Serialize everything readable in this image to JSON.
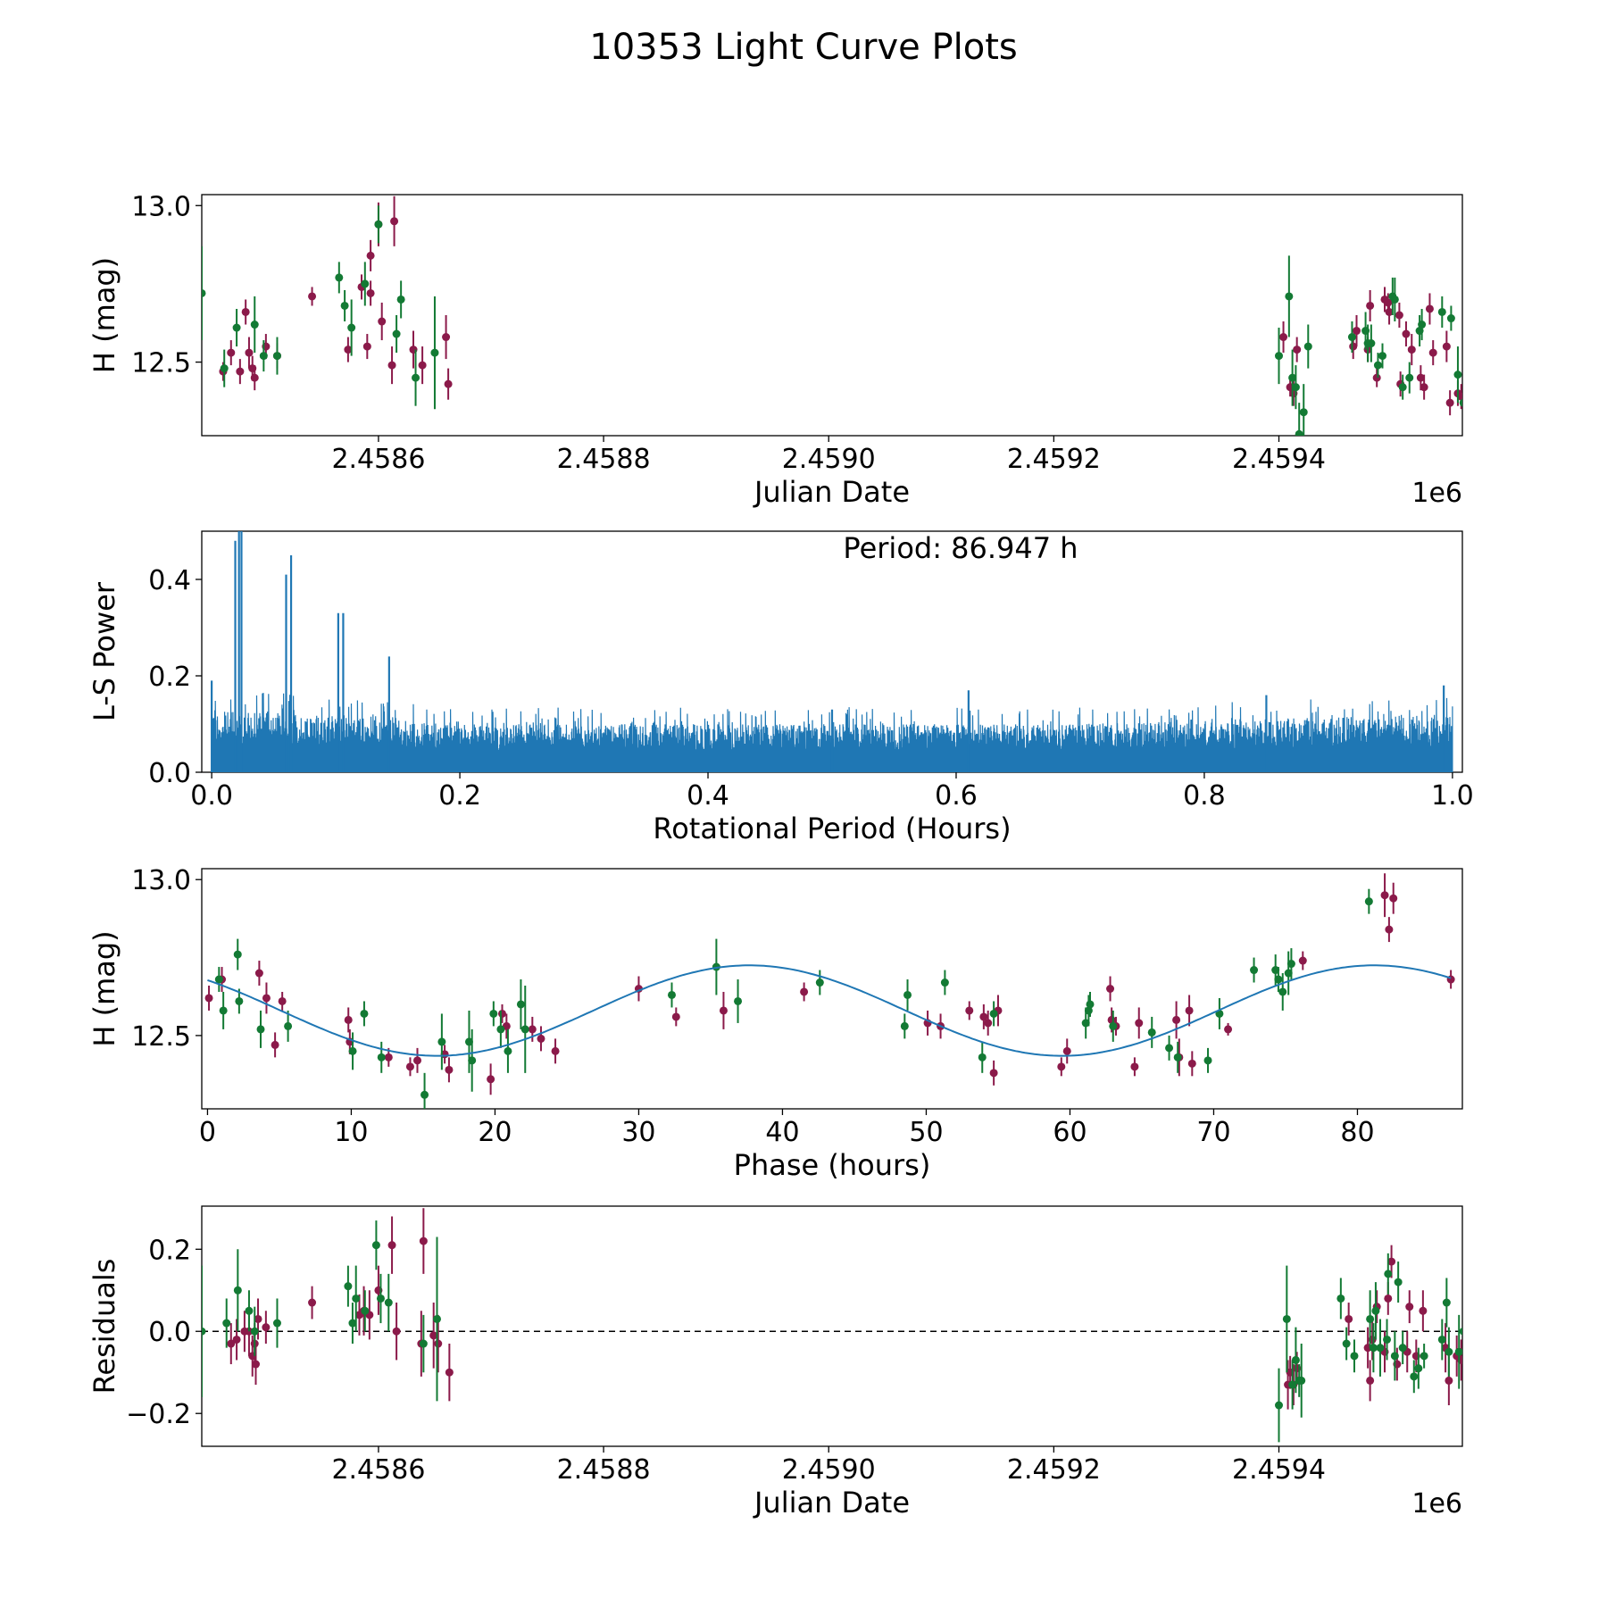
{
  "figure_title": "10353 Light Curve Plots",
  "colors": {
    "band_a": "#8b1a4a",
    "band_b": "#137a34",
    "fit_line": "#1f77b4",
    "periodogram": "#1f77b4"
  },
  "chart_data": [
    {
      "id": "lc",
      "type": "scatter",
      "xlabel": "Julian Date",
      "ylabel": "H (mag)",
      "offset_label": "1e6",
      "xlim": [
        2458443,
        2459563
      ],
      "ylim": [
        12.265,
        13.035
      ],
      "x_ticks": [
        2458600,
        2458800,
        2459000,
        2459200,
        2459400
      ],
      "x_tick_labels": [
        "2.4586",
        "2.4588",
        "2.4590",
        "2.4592",
        "2.4594"
      ],
      "y_ticks": [
        12.5,
        13.0
      ],
      "y_tick_labels": [
        "12.5",
        "13.0"
      ],
      "series": [
        {
          "name": "band_a",
          "x": [
            2458469,
            2458477,
            2458482,
            2458485,
            2458488,
            2458490,
            2458500,
            2458510,
            2458541,
            2458573,
            2458585,
            2458590,
            2458593,
            2458600,
            2458603,
            2458612,
            2458614,
            2458631,
            2458639,
            2458660,
            2458662,
            2458462,
            2458593,
            2459404,
            2459410,
            2459413,
            2459416,
            2459466,
            2459479,
            2459481,
            2459487,
            2459494,
            2459498,
            2459508,
            2459513,
            2459518,
            2459526,
            2459529,
            2459549,
            2459552,
            2459559,
            2459562,
            2459469,
            2459497,
            2459507,
            2459534,
            2459537
          ],
          "y": [
            12.53,
            12.47,
            12.66,
            12.53,
            12.48,
            12.45,
            12.55,
            12.52,
            12.71,
            12.54,
            12.74,
            12.55,
            12.84,
            12.94,
            12.63,
            12.49,
            12.95,
            12.54,
            12.49,
            12.58,
            12.43,
            12.47,
            12.72,
            12.58,
            12.42,
            12.4,
            12.54,
            12.55,
            12.54,
            12.68,
            12.45,
            12.7,
            12.66,
            12.43,
            12.59,
            12.54,
            12.45,
            12.42,
            12.55,
            12.37,
            12.4,
            12.39,
            12.6,
            12.69,
            12.65,
            12.67,
            12.53
          ],
          "err": [
            0.04,
            0.04,
            0.04,
            0.05,
            0.04,
            0.04,
            0.04,
            0.04,
            0.03,
            0.04,
            0.04,
            0.04,
            0.05,
            0.07,
            0.06,
            0.06,
            0.08,
            0.06,
            0.06,
            0.07,
            0.05,
            0.03,
            0.04,
            0.05,
            0.03,
            0.04,
            0.04,
            0.04,
            0.04,
            0.05,
            0.03,
            0.04,
            0.04,
            0.04,
            0.04,
            0.05,
            0.04,
            0.04,
            0.05,
            0.04,
            0.04,
            0.04,
            0.05,
            0.03,
            0.04,
            0.05,
            0.04
          ]
        },
        {
          "name": "band_b",
          "x": [
            2458443,
            2458463,
            2458474,
            2458490,
            2458498,
            2458510,
            2458565,
            2458570,
            2458576,
            2458588,
            2458600,
            2458616,
            2458620,
            2458633,
            2458650,
            2459400,
            2459409,
            2459412,
            2459415,
            2459418,
            2459422,
            2459426,
            2459465,
            2459477,
            2459479,
            2459482,
            2459488,
            2459492,
            2459501,
            2459503,
            2459510,
            2459516,
            2459525,
            2459527,
            2459545,
            2459553,
            2459559,
            2459564
          ],
          "y": [
            12.72,
            12.48,
            12.61,
            12.62,
            12.52,
            12.52,
            12.77,
            12.68,
            12.61,
            12.75,
            12.94,
            12.59,
            12.7,
            12.45,
            12.53,
            12.52,
            12.71,
            12.45,
            12.42,
            12.27,
            12.34,
            12.55,
            12.58,
            12.6,
            12.56,
            12.56,
            12.49,
            12.52,
            12.71,
            12.7,
            12.42,
            12.45,
            12.6,
            12.62,
            12.66,
            12.64,
            12.46,
            12.37
          ],
          "err": [
            0.15,
            0.06,
            0.06,
            0.09,
            0.05,
            0.06,
            0.05,
            0.05,
            0.09,
            0.07,
            0.06,
            0.06,
            0.06,
            0.09,
            0.18,
            0.09,
            0.13,
            0.09,
            0.07,
            0.1,
            0.09,
            0.07,
            0.05,
            0.06,
            0.06,
            0.06,
            0.04,
            0.04,
            0.06,
            0.07,
            0.04,
            0.05,
            0.05,
            0.05,
            0.05,
            0.04,
            0.09,
            0.1
          ]
        }
      ]
    },
    {
      "id": "ls",
      "type": "line",
      "annotation": "Period: 86.947 h",
      "xlabel": "Rotational Period (Hours)",
      "ylabel": "L-S Power",
      "xlim": [
        -0.008,
        1.008
      ],
      "ylim": [
        0,
        0.5
      ],
      "x_ticks": [
        0.0,
        0.2,
        0.4,
        0.6,
        0.8,
        1.0
      ],
      "x_tick_labels": [
        "0.0",
        "0.2",
        "0.4",
        "0.6",
        "0.8",
        "1.0"
      ],
      "y_ticks": [
        0.0,
        0.2,
        0.4
      ],
      "y_tick_labels": [
        "0.0",
        "0.2",
        "0.4"
      ],
      "peaks": [
        {
          "x": 0.019,
          "y": 0.48
        },
        {
          "x": 0.022,
          "y": 0.5
        },
        {
          "x": 0.024,
          "y": 0.5
        },
        {
          "x": 0.06,
          "y": 0.41
        },
        {
          "x": 0.064,
          "y": 0.45
        },
        {
          "x": 0.102,
          "y": 0.33
        },
        {
          "x": 0.106,
          "y": 0.33
        },
        {
          "x": 0.143,
          "y": 0.24
        },
        {
          "x": 0.0,
          "y": 0.19
        },
        {
          "x": 0.61,
          "y": 0.17
        },
        {
          "x": 0.993,
          "y": 0.18
        },
        {
          "x": 0.5,
          "y": 0.13
        },
        {
          "x": 0.85,
          "y": 0.16
        }
      ],
      "noise_floor_near_zero": 0.13,
      "noise_floor_mid": 0.1,
      "noise_floor_far": 0.12
    },
    {
      "id": "phase",
      "type": "scatter",
      "xlabel": "Phase (hours)",
      "ylabel": "H (mag)",
      "xlim": [
        -0.4,
        87.3
      ],
      "ylim": [
        12.265,
        13.035
      ],
      "x_ticks": [
        0,
        10,
        20,
        30,
        40,
        50,
        60,
        70,
        80
      ],
      "x_tick_labels": [
        "0",
        "10",
        "20",
        "30",
        "40",
        "50",
        "60",
        "70",
        "80"
      ],
      "y_ticks": [
        12.5,
        13.0
      ],
      "y_tick_labels": [
        "12.5",
        "13.0"
      ],
      "fit": {
        "period": 86.947,
        "mean": 12.58,
        "amplitude": 0.145,
        "phase_peak": 37.7
      },
      "series": [
        {
          "name": "band_a",
          "x": [
            0.1,
            1.0,
            3.6,
            4.1,
            4.7,
            5.2,
            9.8,
            9.9,
            12.6,
            14.1,
            14.6,
            16.5,
            16.8,
            19.7,
            20.5,
            20.8,
            22.6,
            23.2,
            24.2,
            30.0,
            32.6,
            35.9,
            41.5,
            50.1,
            51.0,
            53.0,
            54.0,
            54.3,
            54.7,
            55.0,
            59.4,
            59.8,
            62.8,
            62.9,
            63.2,
            64.5,
            64.8,
            67.4,
            67.6,
            68.3,
            68.5,
            71.0,
            76.2,
            81.9,
            82.2,
            82.5,
            86.5
          ],
          "y": [
            12.62,
            12.68,
            12.7,
            12.62,
            12.47,
            12.61,
            12.55,
            12.48,
            12.43,
            12.4,
            12.42,
            12.44,
            12.39,
            12.36,
            12.57,
            12.53,
            12.52,
            12.49,
            12.45,
            12.65,
            12.56,
            12.58,
            12.64,
            12.54,
            12.53,
            12.58,
            12.56,
            12.54,
            12.38,
            12.58,
            12.4,
            12.45,
            12.65,
            12.55,
            12.53,
            12.4,
            12.54,
            12.55,
            12.43,
            12.58,
            12.41,
            12.52,
            12.74,
            12.95,
            12.84,
            12.94,
            12.68
          ],
          "err": [
            0.04,
            0.04,
            0.04,
            0.05,
            0.04,
            0.03,
            0.04,
            0.04,
            0.03,
            0.03,
            0.04,
            0.03,
            0.04,
            0.05,
            0.03,
            0.04,
            0.04,
            0.04,
            0.04,
            0.04,
            0.03,
            0.06,
            0.03,
            0.04,
            0.04,
            0.03,
            0.04,
            0.04,
            0.04,
            0.05,
            0.03,
            0.04,
            0.04,
            0.04,
            0.03,
            0.03,
            0.05,
            0.06,
            0.06,
            0.05,
            0.04,
            0.02,
            0.03,
            0.07,
            0.04,
            0.05,
            0.03
          ]
        },
        {
          "name": "band_b",
          "x": [
            0.8,
            1.1,
            2.1,
            2.2,
            3.7,
            5.6,
            10.1,
            10.9,
            12.1,
            15.1,
            16.3,
            18.2,
            18.4,
            19.9,
            20.4,
            20.9,
            21.8,
            22.1,
            32.3,
            35.4,
            36.9,
            42.6,
            48.5,
            48.7,
            51.3,
            53.9,
            54.7,
            61.1,
            61.3,
            61.4,
            63.0,
            65.7,
            66.9,
            67.5,
            69.6,
            70.4,
            72.8,
            74.3,
            74.5,
            74.8,
            75.2,
            75.4,
            80.8
          ],
          "y": [
            12.68,
            12.58,
            12.76,
            12.61,
            12.52,
            12.53,
            12.45,
            12.57,
            12.43,
            12.31,
            12.48,
            12.48,
            12.42,
            12.57,
            12.52,
            12.45,
            12.6,
            12.52,
            12.63,
            12.72,
            12.61,
            12.67,
            12.53,
            12.63,
            12.67,
            12.43,
            12.57,
            12.54,
            12.58,
            12.6,
            12.53,
            12.51,
            12.46,
            12.43,
            12.42,
            12.57,
            12.71,
            12.71,
            12.68,
            12.64,
            12.7,
            12.73,
            12.93
          ],
          "err": [
            0.04,
            0.06,
            0.05,
            0.04,
            0.06,
            0.05,
            0.06,
            0.04,
            0.05,
            0.07,
            0.09,
            0.1,
            0.1,
            0.04,
            0.06,
            0.07,
            0.08,
            0.14,
            0.04,
            0.09,
            0.07,
            0.04,
            0.04,
            0.05,
            0.04,
            0.05,
            0.04,
            0.05,
            0.05,
            0.04,
            0.05,
            0.05,
            0.04,
            0.05,
            0.04,
            0.05,
            0.04,
            0.05,
            0.04,
            0.06,
            0.07,
            0.05,
            0.04
          ]
        }
      ]
    },
    {
      "id": "res",
      "type": "scatter",
      "xlabel": "Julian Date",
      "ylabel": "Residuals",
      "offset_label": "1e6",
      "xlim": [
        2458443,
        2459563
      ],
      "ylim": [
        -0.28,
        0.305
      ],
      "x_ticks": [
        2458600,
        2458800,
        2459000,
        2459200,
        2459400
      ],
      "x_tick_labels": [
        "2.4586",
        "2.4588",
        "2.4590",
        "2.4592",
        "2.4594"
      ],
      "y_ticks": [
        -0.2,
        0.0,
        0.2
      ],
      "y_tick_labels": [
        "−0.2",
        "0.0",
        "0.2"
      ],
      "reference_line": 0.0,
      "series": [
        {
          "name": "band_a",
          "x": [
            2458469,
            2458474,
            2458481,
            2458485,
            2458488,
            2458490,
            2458491,
            2458493,
            2458500,
            2458541,
            2458583,
            2458587,
            2458592,
            2458600,
            2458612,
            2458616,
            2458638,
            2458640,
            2458649,
            2458653,
            2458663,
            2459408,
            2459410,
            2459413,
            2459416,
            2459462,
            2459479,
            2459481,
            2459483,
            2459487,
            2459494,
            2459497,
            2459500,
            2459505,
            2459514,
            2459516,
            2459522,
            2459528,
            2459548,
            2459551,
            2459558,
            2459562
          ],
          "y": [
            -0.03,
            -0.02,
            0.0,
            0.0,
            -0.06,
            -0.03,
            -0.08,
            0.03,
            0.01,
            0.07,
            0.04,
            0.05,
            0.04,
            0.1,
            0.21,
            0.0,
            -0.03,
            0.22,
            -0.01,
            -0.03,
            -0.1,
            -0.13,
            -0.1,
            -0.13,
            -0.09,
            0.03,
            -0.04,
            -0.12,
            -0.02,
            0.06,
            -0.05,
            0.08,
            0.17,
            -0.08,
            -0.05,
            0.06,
            -0.06,
            0.05,
            -0.04,
            -0.12,
            -0.06,
            -0.07
          ],
          "err": [
            0.05,
            0.05,
            0.05,
            0.06,
            0.05,
            0.05,
            0.05,
            0.05,
            0.04,
            0.04,
            0.05,
            0.06,
            0.06,
            0.06,
            0.07,
            0.07,
            0.08,
            0.08,
            0.08,
            0.07,
            0.07,
            0.06,
            0.04,
            0.05,
            0.04,
            0.04,
            0.05,
            0.05,
            0.05,
            0.04,
            0.05,
            0.04,
            0.04,
            0.04,
            0.05,
            0.04,
            0.04,
            0.05,
            0.06,
            0.06,
            0.05,
            0.05
          ]
        },
        {
          "name": "band_b",
          "x": [
            2458443,
            2458465,
            2458475,
            2458485,
            2458490,
            2458510,
            2458573,
            2458577,
            2458580,
            2458588,
            2458598,
            2458602,
            2458609,
            2458640,
            2458652,
            2459400,
            2459407,
            2459412,
            2459415,
            2459418,
            2459420,
            2459455,
            2459460,
            2459467,
            2459481,
            2459484,
            2459486,
            2459490,
            2459496,
            2459497,
            2459503,
            2459506,
            2459510,
            2459520,
            2459524,
            2459529,
            2459545,
            2459549,
            2459551,
            2459560,
            2459564
          ],
          "y": [
            0.0,
            0.02,
            0.1,
            0.05,
            0.0,
            0.02,
            0.11,
            0.02,
            0.08,
            0.05,
            0.21,
            0.08,
            0.07,
            -0.03,
            0.03,
            -0.18,
            0.03,
            -0.13,
            -0.07,
            -0.12,
            -0.12,
            0.08,
            -0.03,
            -0.06,
            0.03,
            -0.04,
            0.05,
            -0.04,
            -0.02,
            0.14,
            -0.06,
            0.12,
            -0.04,
            -0.11,
            -0.09,
            -0.06,
            -0.02,
            0.07,
            -0.05,
            -0.05,
            0.0
          ],
          "err": [
            0.16,
            0.06,
            0.1,
            0.05,
            0.06,
            0.06,
            0.05,
            0.05,
            0.08,
            0.05,
            0.06,
            0.06,
            0.07,
            0.07,
            0.2,
            0.09,
            0.13,
            0.06,
            0.08,
            0.04,
            0.09,
            0.05,
            0.04,
            0.04,
            0.07,
            0.06,
            0.07,
            0.07,
            0.05,
            0.05,
            0.06,
            0.05,
            0.04,
            0.04,
            0.05,
            0.03,
            0.05,
            0.06,
            0.06,
            0.09,
            0.1
          ]
        }
      ]
    }
  ]
}
